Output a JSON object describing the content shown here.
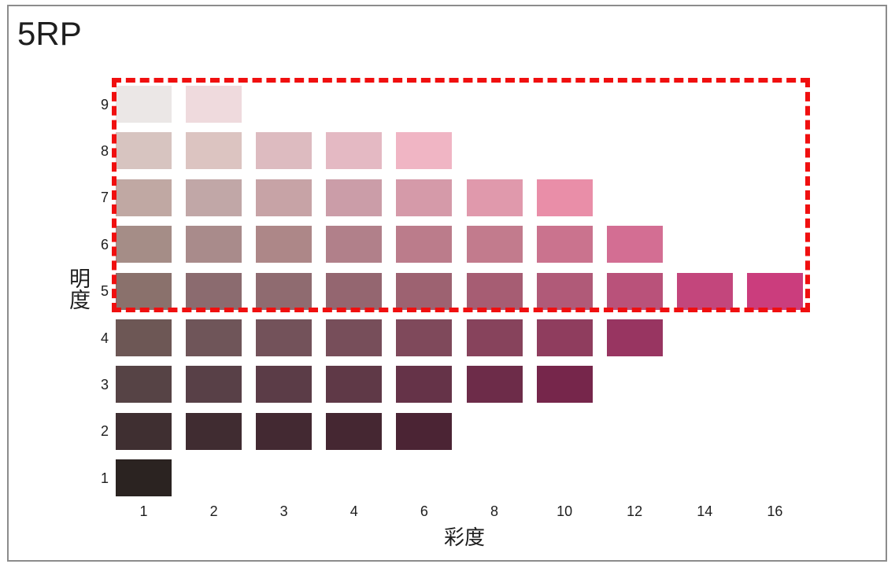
{
  "title": "5RP",
  "y_axis": {
    "label": "明度",
    "ticks": [
      "9",
      "8",
      "7",
      "6",
      "5",
      "4",
      "3",
      "2",
      "1"
    ]
  },
  "x_axis": {
    "label": "彩度",
    "ticks": [
      "1",
      "2",
      "3",
      "4",
      "6",
      "8",
      "10",
      "12",
      "14",
      "16"
    ]
  },
  "highlight": {
    "rows": [
      "9",
      "8",
      "7",
      "6",
      "5"
    ],
    "color": "#f00f0f",
    "style": "dashed"
  },
  "chips": [
    {
      "value": "9",
      "colors": [
        "#ebe7e6",
        "#efdadd"
      ]
    },
    {
      "value": "8",
      "colors": [
        "#d7c4c0",
        "#dcc4c1",
        "#ddbbc0",
        "#e4b9c3",
        "#f0b5c4"
      ]
    },
    {
      "value": "7",
      "colors": [
        "#c0a8a3",
        "#c1a7a7",
        "#c7a3a6",
        "#cb9da8",
        "#d59aa9",
        "#e099ac",
        "#e98ea8"
      ]
    },
    {
      "value": "6",
      "colors": [
        "#a58d87",
        "#a98b8b",
        "#ad8788",
        "#b1808a",
        "#bb7c8b",
        "#c27b8d",
        "#ca738e",
        "#d36e93"
      ]
    },
    {
      "value": "5",
      "colors": [
        "#8a716c",
        "#8b6b6f",
        "#8f6b70",
        "#946670",
        "#9d6271",
        "#a65d73",
        "#b05a78",
        "#b9527a",
        "#c3467c",
        "#cb3d7d"
      ]
    },
    {
      "value": "4",
      "colors": [
        "#6d5755",
        "#6f5559",
        "#73525a",
        "#774e5a",
        "#7f495b",
        "#87435c",
        "#8f3d5e",
        "#983561"
      ]
    },
    {
      "value": "3",
      "colors": [
        "#564345",
        "#584047",
        "#5b3c47",
        "#5f3947",
        "#653348",
        "#6d2c49",
        "#76264b"
      ]
    },
    {
      "value": "2",
      "colors": [
        "#3f2f31",
        "#402c31",
        "#432932",
        "#452732",
        "#4b2434"
      ]
    },
    {
      "value": "1",
      "colors": [
        "#2b2321"
      ]
    }
  ]
}
